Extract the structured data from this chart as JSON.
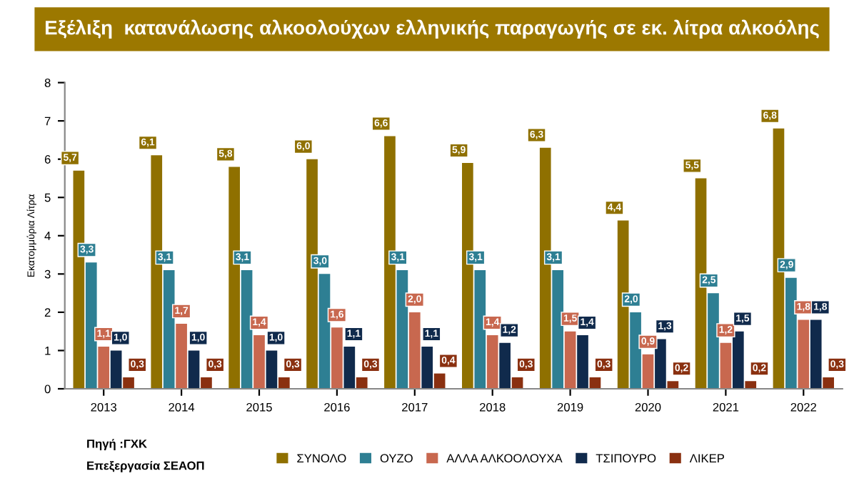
{
  "chart_data": {
    "type": "bar",
    "title": "Εξέλιξη  κατανάλωσης αλκοολούχων ελληνικής παραγωγής σε εκ. λίτρα αλκοόλης",
    "ylabel": "Εκατομμύρια Λίτρα",
    "categories": [
      "2013",
      "2014",
      "2015",
      "2016",
      "2017",
      "2018",
      "2019",
      "2020",
      "2021",
      "2022"
    ],
    "series": [
      {
        "name": "ΣΥΝΟΛΟ",
        "color": "#8f7000",
        "values": [
          5.7,
          6.1,
          5.8,
          6.0,
          6.6,
          5.9,
          6.3,
          4.4,
          5.5,
          6.8
        ],
        "value_labels": [
          "5,7",
          "6,1",
          "5,8",
          "6,0",
          "6,6",
          "5,9",
          "6,3",
          "4,4",
          "5,5",
          "6,8"
        ]
      },
      {
        "name": "ΟΥΖΟ",
        "color": "#2e7f93",
        "values": [
          3.3,
          3.1,
          3.1,
          3.0,
          3.1,
          3.1,
          3.1,
          2.0,
          2.5,
          2.9
        ],
        "value_labels": [
          "3,3",
          "3,1",
          "3,1",
          "3,0",
          "3,1",
          "3,1",
          "3,1",
          "2,0",
          "2,5",
          "2,9"
        ]
      },
      {
        "name": "ΑΛΛΑ ΑΛΚΟΟΛΟΥΧΑ",
        "color": "#c8684f",
        "values": [
          1.1,
          1.7,
          1.4,
          1.6,
          2.0,
          1.4,
          1.5,
          0.9,
          1.2,
          1.8
        ],
        "value_labels": [
          "1,1",
          "1,7",
          "1,4",
          "1,6",
          "2,0",
          "1,4",
          "1,5",
          "0,9",
          "1,2",
          "1,8"
        ]
      },
      {
        "name": "ΤΣΙΠΟΥΡΟ",
        "color": "#102a4c",
        "values": [
          1.0,
          1.0,
          1.0,
          1.1,
          1.1,
          1.2,
          1.4,
          1.3,
          1.5,
          1.8
        ],
        "value_labels": [
          "1,0",
          "1,0",
          "1,0",
          "1,1",
          "1,1",
          "1,2",
          "1,4",
          "1,3",
          "1,5",
          "1,8"
        ]
      },
      {
        "name": "ΛΙΚΕΡ",
        "color": "#8a3010",
        "values": [
          0.3,
          0.3,
          0.3,
          0.3,
          0.4,
          0.3,
          0.3,
          0.2,
          0.2,
          0.3
        ],
        "value_labels": [
          "0,3",
          "0,3",
          "0,3",
          "0,3",
          "0,4",
          "0,3",
          "0,3",
          "0,2",
          "0,2",
          "0,3"
        ]
      }
    ],
    "ylim": [
      0,
      8
    ],
    "yticks": [
      0,
      1,
      2,
      3,
      4,
      5,
      6,
      7,
      8
    ],
    "grid": false,
    "legend": "bottom",
    "annotations": [
      "Πηγή :ΓΧΚ",
      "Επεξεργασία ΣΕΑΟΠ"
    ]
  }
}
